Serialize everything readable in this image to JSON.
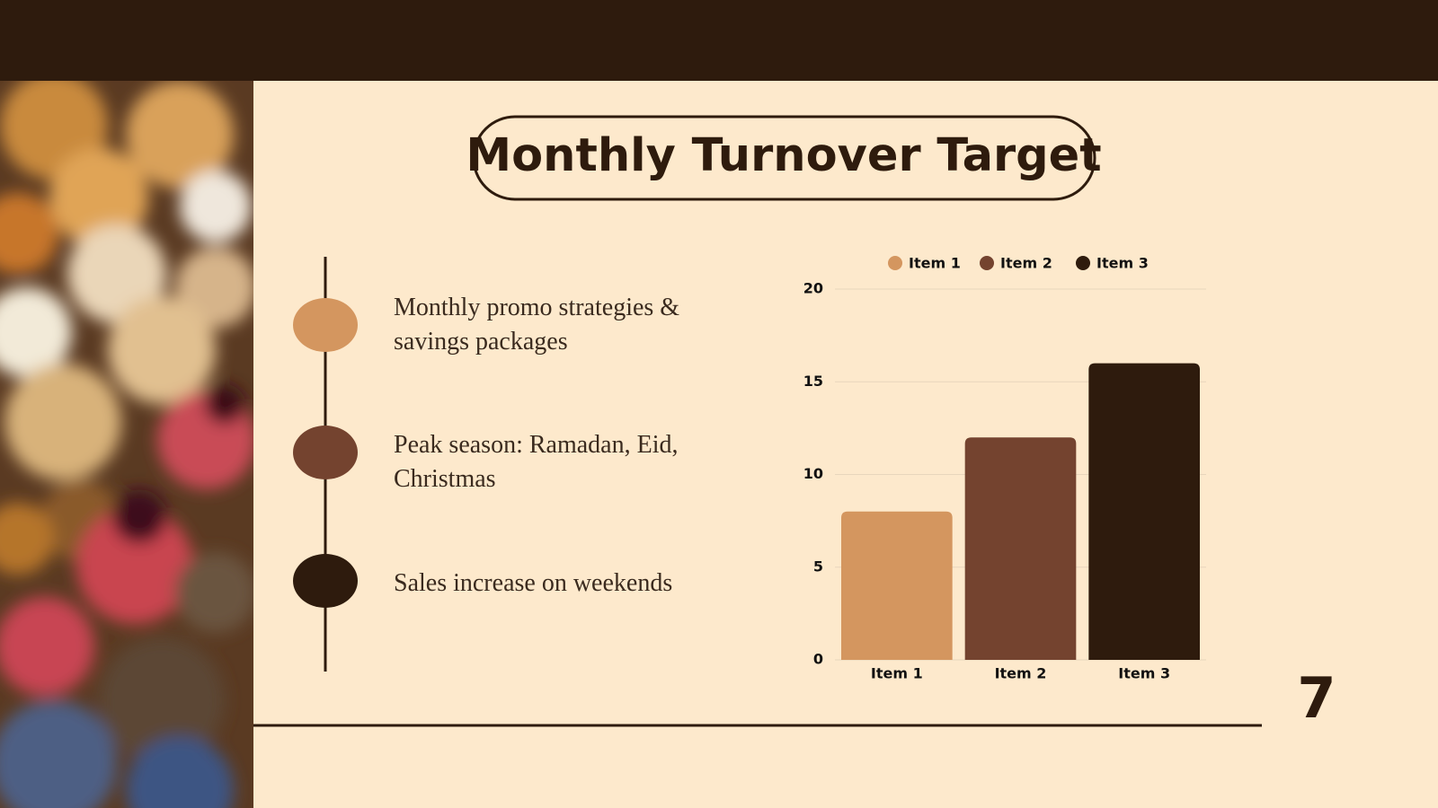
{
  "title": "Monthly Turnover Target",
  "points": [
    "Monthly promo strategies & savings packages",
    "Peak season: Ramadan, Eid, Christmas",
    "Sales increase on weekends"
  ],
  "page_number": "7",
  "chart_data": {
    "type": "bar",
    "categories": [
      "Item 1",
      "Item 2",
      "Item 3"
    ],
    "values": [
      8,
      12,
      16
    ],
    "colors": [
      "#d4965f",
      "#74432f",
      "#2e1b0d"
    ],
    "ylim": [
      0,
      20
    ],
    "yticks": [
      0,
      5,
      10,
      15,
      20
    ],
    "grid": true,
    "legend": "top"
  }
}
